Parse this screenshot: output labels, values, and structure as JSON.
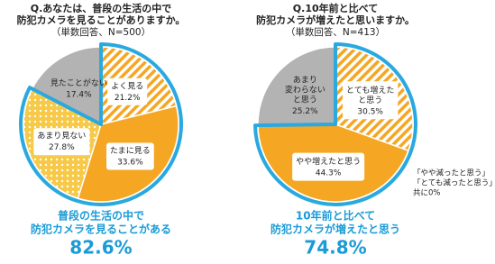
{
  "chart_data": [
    {
      "type": "pie",
      "title": [
        "Q.あなたは、普段の生活の中で",
        "防犯カメラを見ることがありますか。"
      ],
      "subtitle": "（単数回答、N=500）",
      "categories": [
        "よく見る",
        "たまに見る",
        "あまり見ない",
        "見たことがない"
      ],
      "values": [
        21.2,
        33.6,
        27.8,
        17.4
      ],
      "value_labels": [
        "21.2%",
        "33.6%",
        "27.8%",
        "17.4%"
      ],
      "colors": [
        "#f5a623",
        "#f5a623",
        "#f7c948",
        "#b3b3b3"
      ],
      "patterns": [
        "stripe",
        "solid",
        "dots",
        "solid"
      ],
      "highlight": [
        0,
        1,
        2
      ],
      "highlight_color": "#29a9e0",
      "summary": {
        "text": [
          "普段の生活の中で",
          "防犯カメラを見ることがある"
        ],
        "value": 82.6,
        "value_label": "82.6%"
      }
    },
    {
      "type": "pie",
      "title": [
        "Q.10年前と比べて",
        "防犯カメラが増えたと思いますか。"
      ],
      "subtitle": "（単数回答、N=413）",
      "categories": [
        "とても増えた\nと思う",
        "やや増えたと思う",
        "あまり\n変わらない\nと思う"
      ],
      "values": [
        30.5,
        44.3,
        25.2
      ],
      "value_labels": [
        "30.5%",
        "44.3%",
        "25.2%"
      ],
      "colors": [
        "#f5a623",
        "#f5a623",
        "#b3b3b3"
      ],
      "patterns": [
        "stripe",
        "solid",
        "solid"
      ],
      "highlight": [
        0,
        1
      ],
      "highlight_color": "#29a9e0",
      "note": [
        "「やや減ったと思う」",
        "「とても減ったと思う」は",
        "共に0%"
      ],
      "summary": {
        "text": [
          "10年前と比べて",
          "防犯カメラが増えたと思う"
        ],
        "value": 74.8,
        "value_label": "74.8%"
      }
    }
  ]
}
